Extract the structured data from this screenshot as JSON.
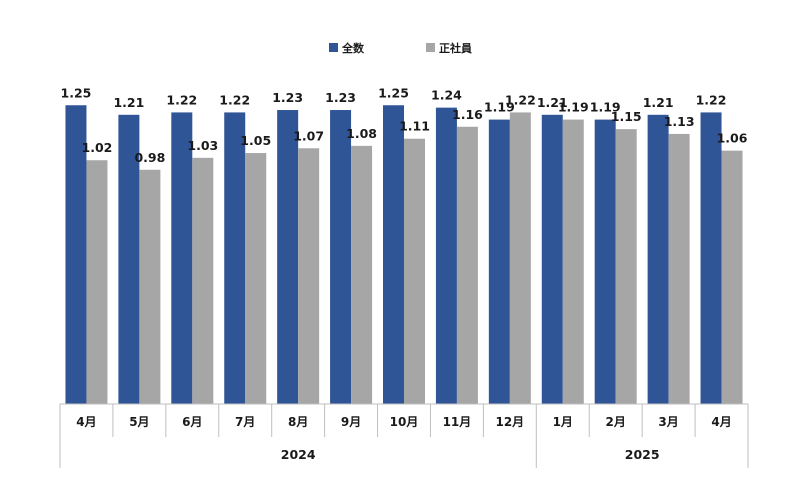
{
  "chart_data": {
    "type": "bar",
    "title": "",
    "xlabel": "",
    "ylabel": "",
    "ylim": [
      0,
      1.3
    ],
    "grid": false,
    "legend_position": "top-center",
    "categories": [
      "4月",
      "5月",
      "6月",
      "7月",
      "8月",
      "9月",
      "10月",
      "11月",
      "12月",
      "1月",
      "2月",
      "3月",
      "4月"
    ],
    "year_groups": [
      {
        "label": "2024",
        "count": 9
      },
      {
        "label": "2025",
        "count": 4
      }
    ],
    "series": [
      {
        "name": "全数",
        "color": "#2f5597",
        "values": [
          1.25,
          1.21,
          1.22,
          1.22,
          1.23,
          1.23,
          1.25,
          1.24,
          1.19,
          1.21,
          1.19,
          1.21,
          1.22
        ]
      },
      {
        "name": "正社員",
        "color": "#a6a6a6",
        "values": [
          1.02,
          0.98,
          1.03,
          1.05,
          1.07,
          1.08,
          1.11,
          1.16,
          1.22,
          1.19,
          1.15,
          1.13,
          1.06
        ]
      }
    ]
  }
}
